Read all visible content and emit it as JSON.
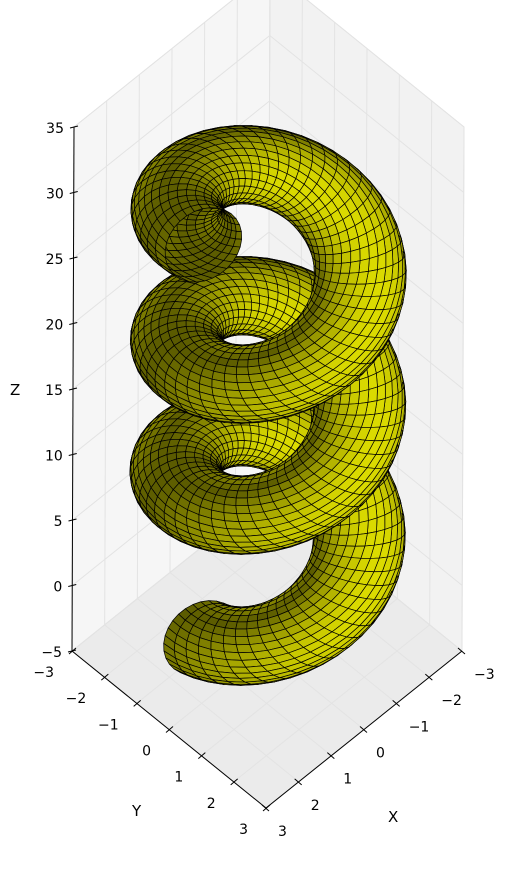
{
  "chart_data": {
    "type": "surface3d",
    "title": "",
    "surface": "helical tube (spring)",
    "face_color": "#c8c800",
    "edge_color": "#000000",
    "xlabel": "X",
    "ylabel": "Y",
    "zlabel": "Z",
    "xlim": [
      -3,
      3
    ],
    "ylim": [
      -3,
      3
    ],
    "zlim": [
      -5,
      35
    ],
    "x_ticks": [
      "−3",
      "−2",
      "−1",
      "0",
      "1",
      "2",
      "3"
    ],
    "y_ticks": [
      "−3",
      "−2",
      "−1",
      "0",
      "1",
      "2",
      "3"
    ],
    "z_ticks": [
      "−5",
      "0",
      "5",
      "10",
      "15",
      "20",
      "25",
      "30",
      "35"
    ],
    "helix": {
      "coil_radius": 2,
      "tube_radius": 1,
      "turns": 3,
      "z_start": 0,
      "z_end": 30
    },
    "pane_color": "#f2f2f2",
    "grid": true
  }
}
